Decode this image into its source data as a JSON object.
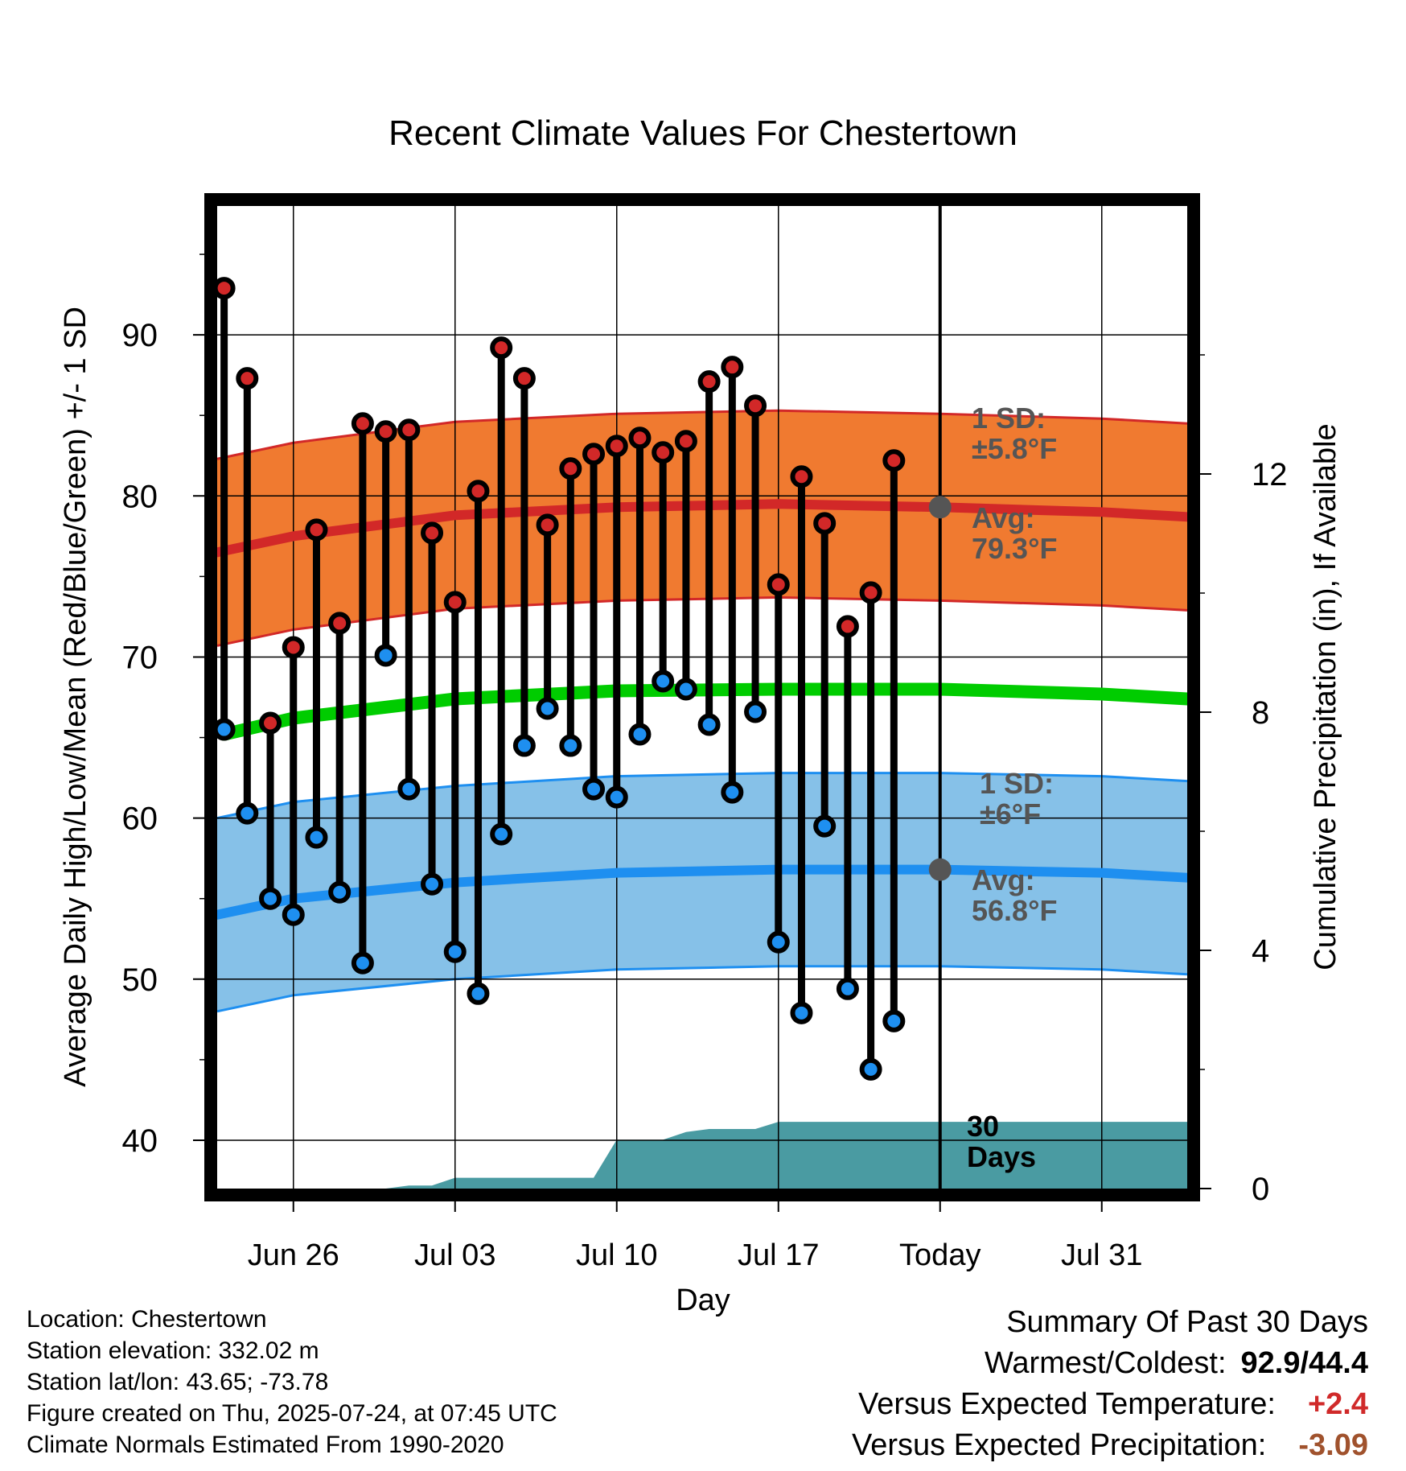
{
  "chart_data": {
    "type": "scatter",
    "title": "Recent Climate Values For Chestertown",
    "xlabel": "Day",
    "ylabel": "Average Daily High/Low/Mean (Red/Blue/Green) +/- 1 SD",
    "y2label": "Cumulative Precipitation (in), If Available",
    "ylim": [
      37,
      98
    ],
    "y2lim": [
      0,
      16.5
    ],
    "x_ticks": [
      {
        "date": "2025-06-26",
        "label": "Jun 26"
      },
      {
        "date": "2025-07-03",
        "label": "Jul 03"
      },
      {
        "date": "2025-07-10",
        "label": "Jul 10"
      },
      {
        "date": "2025-07-17",
        "label": "Jul 17"
      },
      {
        "date": "2025-07-24",
        "label": "Today"
      },
      {
        "date": "2025-07-31",
        "label": "Jul 31"
      }
    ],
    "xlim": [
      "2025-06-22.7",
      "2025-08-03.7"
    ],
    "y_ticks": [
      40,
      50,
      60,
      70,
      80,
      90
    ],
    "y2_ticks": [
      0,
      4,
      8,
      12
    ],
    "grid": true,
    "today": "2025-07-24",
    "dates": [
      "2025-06-23",
      "2025-06-24",
      "2025-06-25",
      "2025-06-26",
      "2025-06-27",
      "2025-06-28",
      "2025-06-29",
      "2025-06-30",
      "2025-07-01",
      "2025-07-02",
      "2025-07-03",
      "2025-07-04",
      "2025-07-05",
      "2025-07-06",
      "2025-07-07",
      "2025-07-08",
      "2025-07-09",
      "2025-07-10",
      "2025-07-11",
      "2025-07-12",
      "2025-07-13",
      "2025-07-14",
      "2025-07-15",
      "2025-07-16",
      "2025-07-17",
      "2025-07-18",
      "2025-07-19",
      "2025-07-20",
      "2025-07-21",
      "2025-07-22",
      "2025-07-23"
    ],
    "daily_high": [
      92.9,
      87.3,
      65.9,
      70.6,
      77.9,
      72.1,
      84.5,
      84.0,
      84.1,
      77.7,
      73.4,
      80.3,
      89.2,
      87.3,
      78.2,
      81.7,
      82.6,
      83.1,
      83.6,
      82.7,
      83.4,
      87.1,
      88.0,
      85.6,
      74.5,
      81.2,
      78.3,
      71.9,
      74.0,
      82.2,
      null
    ],
    "daily_low": [
      65.5,
      60.3,
      55.0,
      54.0,
      58.8,
      55.4,
      51.0,
      70.1,
      61.8,
      55.9,
      51.7,
      49.1,
      59.0,
      64.5,
      66.8,
      64.5,
      61.8,
      61.3,
      65.2,
      68.5,
      68.0,
      65.8,
      61.6,
      66.6,
      52.3,
      47.9,
      59.5,
      49.4,
      44.4,
      47.4,
      null
    ],
    "normal_high": {
      "dates": [
        "2025-06-22.7",
        "2025-06-26",
        "2025-07-03",
        "2025-07-10",
        "2025-07-17",
        "2025-07-24",
        "2025-07-31",
        "2025-08-03.7"
      ],
      "values": [
        76.5,
        77.5,
        78.8,
        79.3,
        79.5,
        79.3,
        79.0,
        78.7
      ]
    },
    "normal_high_sd": 5.8,
    "normal_low": {
      "dates": [
        "2025-06-22.7",
        "2025-06-26",
        "2025-07-03",
        "2025-07-10",
        "2025-07-17",
        "2025-07-24",
        "2025-07-31",
        "2025-08-03.7"
      ],
      "values": [
        54.0,
        55.0,
        56.0,
        56.6,
        56.8,
        56.8,
        56.6,
        56.3
      ]
    },
    "normal_low_sd": 6,
    "normal_mean": {
      "dates": [
        "2025-06-22.7",
        "2025-06-26",
        "2025-07-03",
        "2025-07-10",
        "2025-07-17",
        "2025-07-24",
        "2025-07-31",
        "2025-08-03.7"
      ],
      "values": [
        65.2,
        66.2,
        67.4,
        67.9,
        68.0,
        68.0,
        67.7,
        67.4
      ]
    },
    "cumulative_precip": {
      "dates": [
        "2025-06-23",
        "2025-06-24",
        "2025-06-25",
        "2025-06-26",
        "2025-06-27",
        "2025-06-28",
        "2025-06-29",
        "2025-06-30",
        "2025-07-01",
        "2025-07-02",
        "2025-07-03",
        "2025-07-04",
        "2025-07-05",
        "2025-07-06",
        "2025-07-07",
        "2025-07-08",
        "2025-07-09",
        "2025-07-10",
        "2025-07-11",
        "2025-07-12",
        "2025-07-13",
        "2025-07-14",
        "2025-07-15",
        "2025-07-16",
        "2025-07-17",
        "2025-07-18",
        "2025-07-19",
        "2025-07-20",
        "2025-07-21",
        "2025-07-22",
        "2025-07-23",
        "2025-07-24",
        "2025-08-03.7"
      ],
      "values": [
        0,
        0,
        0,
        0,
        0,
        0,
        0,
        0,
        0.05,
        0.05,
        0.18,
        0.18,
        0.18,
        0.18,
        0.18,
        0.18,
        0.18,
        0.82,
        0.82,
        0.82,
        0.95,
        1.0,
        1.0,
        1.0,
        1.12,
        1.12,
        1.12,
        1.12,
        1.12,
        1.12,
        1.12,
        1.12,
        1.12
      ]
    },
    "annotations": {
      "high_sd_label": [
        "1 SD:",
        "±5.8°F"
      ],
      "high_avg_label": [
        "Avg:",
        "79.3°F"
      ],
      "low_sd_label": [
        "1 SD:",
        "±6°F"
      ],
      "low_avg_label": [
        "Avg:",
        "56.8°F"
      ],
      "days_label": [
        "30",
        "Days"
      ]
    },
    "colors": {
      "high_band": "#f07a30",
      "high_line": "#d22828",
      "low_band": "#86c1e8",
      "low_line": "#1e8ff0",
      "mean_line": "#00cc00",
      "precip": "#4a9ba2",
      "high_dot": "#d22828",
      "low_dot": "#1e8ff0",
      "annotation": "#555555"
    }
  },
  "footer": {
    "lines": [
      "Location: Chestertown",
      "Station elevation: 332.02 m",
      "Station lat/lon: 43.65; -73.78",
      "Figure created on Thu, 2025-07-24, at 07:45 UTC",
      "Climate Normals Estimated From 1990-2020"
    ]
  },
  "summary": {
    "title": "Summary Of Past 30 Days",
    "warmest_coldest_label": "Warmest/Coldest:",
    "warmest_coldest_value": "92.9/44.4",
    "temp_label": "Versus Expected Temperature:",
    "temp_value": "+2.4",
    "precip_label": "Versus Expected Precipitation:",
    "precip_value": "-3.09"
  }
}
